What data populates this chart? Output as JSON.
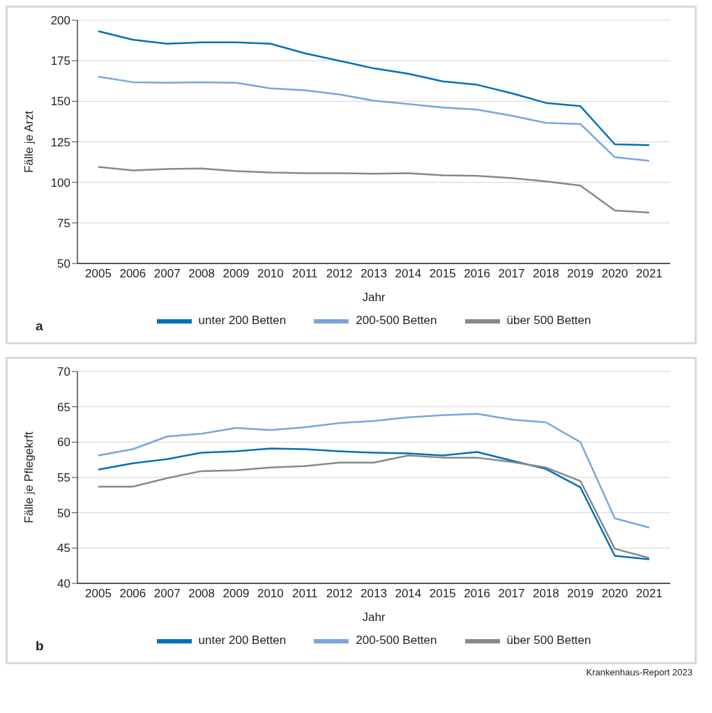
{
  "chart_data": [
    {
      "type": "line",
      "xlabel": "Jahr",
      "ylabel": "Fälle je Arzt",
      "categories": [
        "2005",
        "2006",
        "2007",
        "2008",
        "2009",
        "2010",
        "2011",
        "2012",
        "2013",
        "2014",
        "2015",
        "2016",
        "2017",
        "2018",
        "2019",
        "2020",
        "2021"
      ],
      "series": [
        {
          "name": "unter 200 Betten",
          "color": "#0070b8",
          "values": [
            193.2,
            188,
            185.5,
            186.4,
            186.4,
            185.5,
            179.6,
            175,
            170.3,
            167,
            162.3,
            160.2,
            155,
            149,
            147,
            123.5,
            123
          ]
        },
        {
          "name": "200-500 Betten",
          "color": "#78a6da",
          "values": [
            165.2,
            161.8,
            161.4,
            161.8,
            161.4,
            158,
            156.8,
            154.2,
            150.4,
            148.3,
            146.2,
            144.9,
            141.1,
            136.7,
            136,
            115.5,
            113.3
          ]
        },
        {
          "name": "über 500 Betten",
          "color": "#888888",
          "values": [
            109.5,
            107.4,
            108.2,
            108.6,
            107,
            106.1,
            105.7,
            105.7,
            105.3,
            105.7,
            104.4,
            104,
            102.7,
            100.6,
            98,
            82.7,
            81.4
          ]
        }
      ],
      "ylim": [
        50,
        200
      ],
      "yticks": [
        50,
        75,
        100,
        125,
        150,
        175,
        200
      ],
      "grid": "y",
      "legend": "bottom",
      "marker": "none",
      "line_style": "solid",
      "annotations": [
        "a"
      ]
    },
    {
      "type": "line",
      "xlabel": "Jahr",
      "ylabel": "Fälle je Pflegekrft",
      "categories": [
        "2005",
        "2006",
        "2007",
        "2008",
        "2009",
        "2010",
        "2011",
        "2012",
        "2013",
        "2014",
        "2015",
        "2016",
        "2017",
        "2018",
        "2019",
        "2020",
        "2021"
      ],
      "series": [
        {
          "name": "unter 200 Betten",
          "color": "#0070b8",
          "values": [
            56.1,
            57,
            57.6,
            58.5,
            58.7,
            59.1,
            59,
            58.7,
            58.5,
            58.4,
            58.1,
            58.6,
            57.4,
            56.2,
            53.6,
            43.9,
            43.4
          ]
        },
        {
          "name": "200-500 Betten",
          "color": "#78a6da",
          "values": [
            58.1,
            59,
            60.8,
            61.2,
            62,
            61.7,
            62.1,
            62.7,
            63,
            63.5,
            63.8,
            64,
            63.2,
            62.8,
            60,
            49.2,
            47.9
          ]
        },
        {
          "name": "über 500 Betten",
          "color": "#888888",
          "values": [
            53.7,
            53.7,
            54.9,
            55.9,
            56,
            56.4,
            56.6,
            57.1,
            57.1,
            58.1,
            57.8,
            57.8,
            57.2,
            56.4,
            54.5,
            44.9,
            43.6
          ]
        }
      ],
      "ylim": [
        40,
        70
      ],
      "yticks": [
        40,
        45,
        50,
        55,
        60,
        65,
        70
      ],
      "grid": "y",
      "legend": "bottom",
      "marker": "none",
      "line_style": "solid",
      "annotations": [
        "b",
        "Krankenhaus-Report 2023"
      ]
    }
  ]
}
